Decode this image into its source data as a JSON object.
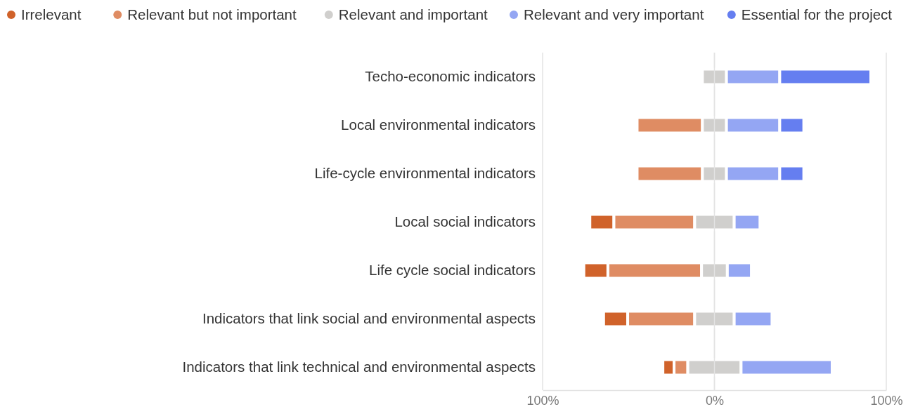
{
  "chart_data": {
    "type": "bar",
    "orientation": "horizontal",
    "legend": "top",
    "categories": [
      "Techo-economic indicators",
      "Local environmental indicators",
      "Life-cycle environmental indicators",
      "Local social indicators",
      "Life cycle social indicators",
      "Indicators that link social and environmental aspects",
      "Indicators that link technical and environmental aspects"
    ],
    "xlim": [
      -100,
      100
    ],
    "xticks": [
      {
        "value": -100,
        "label": "100%"
      },
      {
        "value": 0,
        "label": "0%"
      },
      {
        "value": 100,
        "label": "100%"
      }
    ],
    "grid": "x",
    "series": [
      {
        "name": "Irrelevant",
        "color": "#d0622a",
        "values": [
          null,
          null,
          null,
          14,
          14,
          14,
          6.5
        ],
        "base": [
          null,
          null,
          null,
          -72.5,
          -76,
          -64.5,
          -30
        ]
      },
      {
        "name": "Relevant but not important",
        "color": "#df8c63",
        "values": [
          null,
          38,
          38,
          47,
          54.5,
          39,
          8
        ],
        "base": [
          null,
          -45,
          -45,
          -58.5,
          -62,
          -50.5,
          -23.5
        ]
      },
      {
        "name": "Relevant and important",
        "color": "#d0cfcd",
        "values": [
          14,
          14,
          14,
          23,
          15,
          23,
          31
        ],
        "base": [
          -7,
          -7,
          -7,
          -11.5,
          -7.5,
          -11.5,
          -15.5
        ]
      },
      {
        "name": "Relevant and very important",
        "color": "#94a6f3",
        "values": [
          31,
          31,
          31,
          15,
          14,
          22,
          53
        ],
        "base": [
          7,
          7,
          7,
          11.5,
          7.5,
          11.5,
          15.5
        ]
      },
      {
        "name": "Essential for the project",
        "color": "#657ef0",
        "values": [
          53,
          14,
          14,
          null,
          null,
          null,
          null
        ],
        "base": [
          38,
          38,
          38,
          null,
          null,
          null,
          null
        ]
      }
    ]
  }
}
